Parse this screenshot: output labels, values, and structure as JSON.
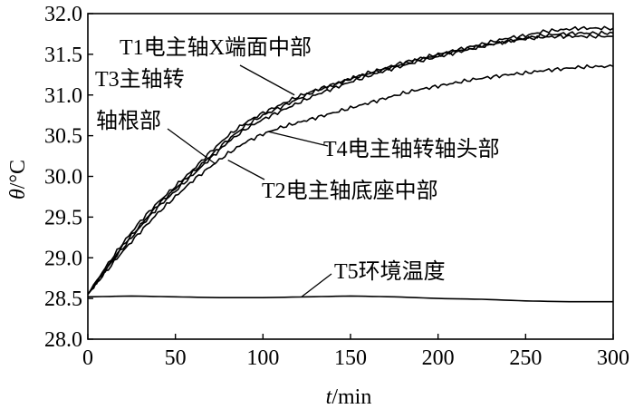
{
  "chart_data": {
    "type": "line",
    "xlabel_var": "t",
    "xlabel_unit": "/min",
    "ylabel_var": "θ",
    "ylabel_unit": "/°C",
    "xlim": [
      0,
      300
    ],
    "ylim": [
      28.0,
      32.0
    ],
    "x_ticks": [
      0,
      50,
      100,
      150,
      200,
      250,
      300
    ],
    "x_tick_labels": [
      "0",
      "50",
      "100",
      "150",
      "200",
      "250",
      "300"
    ],
    "y_ticks": [
      28.0,
      28.5,
      29.0,
      29.5,
      30.0,
      30.5,
      31.0,
      31.5,
      32.0
    ],
    "y_tick_labels": [
      "28.0",
      "28.5",
      "29.0",
      "29.5",
      "30.0",
      "30.5",
      "31.0",
      "31.5",
      "32.0"
    ],
    "grid": false,
    "series": [
      {
        "name": "T1电主轴X端面中部",
        "x": [
          0,
          10,
          20,
          30,
          40,
          50,
          60,
          70,
          80,
          90,
          100,
          110,
          120,
          130,
          140,
          150,
          160,
          170,
          180,
          190,
          200,
          210,
          220,
          230,
          240,
          250,
          260,
          270,
          280,
          290,
          300
        ],
        "y": [
          28.55,
          28.85,
          29.15,
          29.4,
          29.65,
          29.85,
          30.05,
          30.25,
          30.45,
          30.62,
          30.75,
          30.85,
          30.95,
          31.05,
          31.12,
          31.2,
          31.27,
          31.33,
          31.4,
          31.45,
          31.5,
          31.55,
          31.6,
          31.65,
          31.7,
          31.73,
          31.78,
          31.8,
          31.82,
          31.82,
          31.82
        ]
      },
      {
        "name": "T2电主轴底座中部",
        "x": [
          0,
          10,
          20,
          30,
          40,
          50,
          60,
          70,
          80,
          90,
          100,
          110,
          120,
          130,
          140,
          150,
          160,
          170,
          180,
          190,
          200,
          210,
          220,
          230,
          240,
          250,
          260,
          270,
          280,
          290,
          300
        ],
        "y": [
          28.55,
          28.85,
          29.12,
          29.38,
          29.62,
          29.82,
          30.02,
          30.22,
          30.42,
          30.58,
          30.7,
          30.8,
          30.9,
          31.0,
          31.08,
          31.16,
          31.23,
          31.3,
          31.36,
          31.42,
          31.47,
          31.52,
          31.57,
          31.62,
          31.66,
          31.7,
          31.73,
          31.75,
          31.76,
          31.76,
          31.76
        ]
      },
      {
        "name": "T3主轴转轴根部",
        "x": [
          0,
          10,
          20,
          30,
          40,
          50,
          60,
          70,
          80,
          90,
          100,
          110,
          120,
          130,
          140,
          150,
          160,
          170,
          180,
          190,
          200,
          210,
          220,
          230,
          240,
          250,
          260,
          270,
          280,
          290,
          300
        ],
        "y": [
          28.55,
          28.88,
          29.18,
          29.45,
          29.68,
          29.88,
          30.08,
          30.3,
          30.5,
          30.66,
          30.78,
          30.88,
          30.98,
          31.06,
          31.13,
          31.2,
          31.26,
          31.32,
          31.38,
          31.44,
          31.49,
          31.54,
          31.58,
          31.62,
          31.66,
          31.69,
          31.71,
          31.72,
          31.72,
          31.72,
          31.72
        ]
      },
      {
        "name": "T4电主轴转轴头部",
        "x": [
          0,
          10,
          20,
          30,
          40,
          50,
          60,
          70,
          80,
          90,
          100,
          110,
          120,
          130,
          140,
          150,
          160,
          170,
          180,
          190,
          200,
          210,
          220,
          230,
          240,
          250,
          260,
          270,
          280,
          290,
          300
        ],
        "y": [
          28.55,
          28.82,
          29.08,
          29.32,
          29.55,
          29.75,
          29.95,
          30.12,
          30.28,
          30.42,
          30.52,
          30.6,
          30.66,
          30.72,
          30.78,
          30.84,
          30.9,
          30.96,
          31.02,
          31.07,
          31.11,
          31.15,
          31.19,
          31.22,
          31.25,
          31.27,
          31.3,
          31.32,
          31.34,
          31.35,
          31.35
        ]
      },
      {
        "name": "T5环境温度",
        "x": [
          0,
          25,
          50,
          75,
          100,
          125,
          150,
          175,
          200,
          225,
          250,
          275,
          300
        ],
        "y": [
          28.52,
          28.53,
          28.52,
          28.51,
          28.51,
          28.52,
          28.53,
          28.52,
          28.5,
          28.49,
          28.47,
          28.46,
          28.46
        ]
      }
    ],
    "annotations": [
      {
        "text": "T1电主轴X端面中部",
        "series": 0
      },
      {
        "text": "T3主轴转",
        "series": 2
      },
      {
        "text": "轴根部",
        "series": 2
      },
      {
        "text": "T4电主轴转轴头部",
        "series": 3
      },
      {
        "text": "T2电主轴底座中部",
        "series": 1
      },
      {
        "text": "T5环境温度",
        "series": 4
      }
    ]
  }
}
